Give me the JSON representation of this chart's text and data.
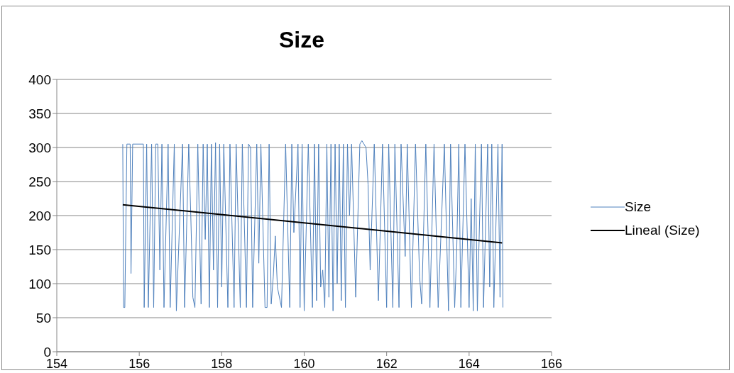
{
  "chart_data": {
    "type": "line",
    "title": "Size",
    "grid": "y",
    "legend": "right",
    "marker": "none",
    "xlim": [
      154,
      166
    ],
    "xticks": [
      154,
      156,
      158,
      160,
      162,
      164,
      166
    ],
    "ylim": [
      0,
      400
    ],
    "yticks": [
      0,
      50,
      100,
      150,
      200,
      250,
      300,
      350,
      400
    ],
    "series": [
      {
        "name": "Size",
        "color": "#4f81bd",
        "x": [
          155.6,
          155.62,
          155.65,
          155.7,
          155.78,
          155.8,
          155.84,
          156.1,
          156.12,
          156.18,
          156.22,
          156.3,
          156.35,
          156.4,
          156.45,
          156.5,
          156.55,
          156.6,
          156.7,
          156.75,
          156.85,
          156.9,
          157.05,
          157.1,
          157.2,
          157.25,
          157.3,
          157.35,
          157.42,
          157.5,
          157.55,
          157.6,
          157.65,
          157.7,
          157.75,
          157.8,
          157.85,
          157.9,
          157.95,
          158.0,
          158.05,
          158.15,
          158.2,
          158.3,
          158.35,
          158.45,
          158.5,
          158.6,
          158.65,
          158.7,
          158.75,
          158.85,
          158.9,
          158.95,
          159.05,
          159.1,
          159.15,
          159.2,
          159.25,
          159.3,
          159.35,
          159.45,
          159.55,
          159.65,
          159.7,
          159.75,
          159.85,
          159.9,
          159.95,
          160.0,
          160.1,
          160.2,
          160.25,
          160.3,
          160.35,
          160.4,
          160.45,
          160.5,
          160.55,
          160.6,
          160.65,
          160.7,
          160.75,
          160.8,
          160.85,
          160.9,
          160.95,
          161.0,
          161.05,
          161.1,
          161.15,
          161.25,
          161.35,
          161.4,
          161.5,
          161.55,
          161.6,
          161.7,
          161.8,
          161.9,
          162.0,
          162.05,
          162.15,
          162.2,
          162.3,
          162.35,
          162.45,
          162.5,
          162.6,
          162.7,
          162.8,
          162.85,
          162.95,
          163.05,
          163.15,
          163.25,
          163.4,
          163.5,
          163.55,
          163.65,
          163.7,
          163.75,
          163.8,
          163.9,
          164.0,
          164.05,
          164.1,
          164.15,
          164.2,
          164.3,
          164.35,
          164.45,
          164.5,
          164.55,
          164.6,
          164.7,
          164.75,
          164.8,
          164.82
        ],
        "values": [
          305,
          65,
          65,
          305,
          305,
          115,
          305,
          305,
          65,
          305,
          65,
          305,
          65,
          305,
          305,
          120,
          305,
          65,
          305,
          65,
          305,
          60,
          305,
          65,
          305,
          200,
          80,
          65,
          305,
          70,
          305,
          165,
          305,
          65,
          305,
          120,
          307,
          65,
          305,
          95,
          305,
          65,
          305,
          65,
          305,
          65,
          305,
          65,
          305,
          300,
          65,
          305,
          130,
          305,
          65,
          65,
          305,
          70,
          110,
          170,
          95,
          65,
          305,
          65,
          305,
          175,
          305,
          65,
          305,
          60,
          305,
          65,
          305,
          75,
          305,
          95,
          120,
          65,
          305,
          80,
          305,
          60,
          305,
          100,
          305,
          75,
          305,
          65,
          305,
          200,
          305,
          80,
          305,
          310,
          300,
          245,
          120,
          305,
          75,
          305,
          65,
          305,
          65,
          305,
          65,
          305,
          140,
          305,
          65,
          305,
          110,
          70,
          305,
          65,
          305,
          65,
          305,
          60,
          305,
          65,
          150,
          305,
          65,
          305,
          65,
          225,
          60,
          305,
          60,
          305,
          65,
          305,
          95,
          305,
          65,
          305,
          80,
          305,
          65
        ]
      },
      {
        "name": "Lineal (Size)",
        "color": "#000000",
        "x": [
          155.6,
          164.8
        ],
        "values": [
          216,
          160
        ]
      }
    ]
  }
}
